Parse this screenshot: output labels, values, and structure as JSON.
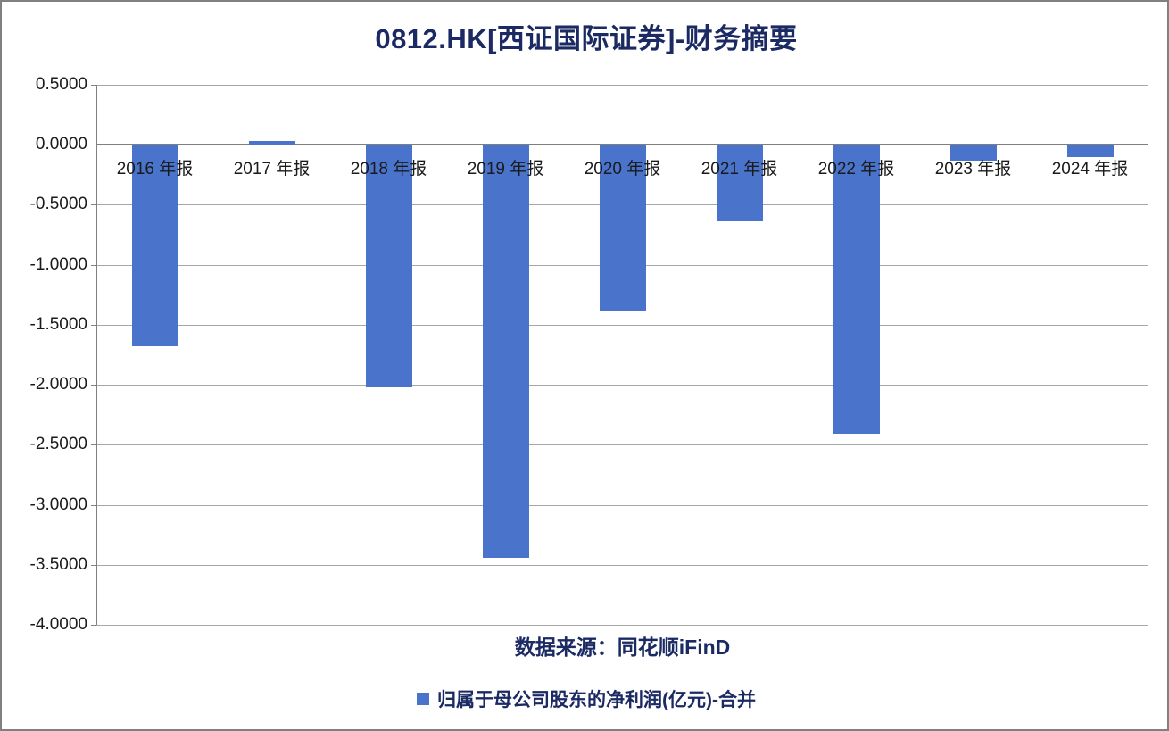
{
  "header": {
    "title": "0812.HK[西证国际证券]-财务摘要"
  },
  "footer": {
    "source": "数据来源：同花顺iFinD"
  },
  "legend": {
    "label": "归属于母公司股东的净利润(亿元)-合并",
    "marker_color": "#4A74CC"
  },
  "colors": {
    "bar": "#4A74CC",
    "grid": "#A6A6A6",
    "zero_line": "#7F7F7F",
    "axis": "#808080",
    "navy_text": "#1B2A63",
    "tick_text": "#1A1A1A"
  },
  "chart_data": {
    "type": "bar",
    "title": "0812.HK[西证国际证券]-财务摘要",
    "series_name": "归属于母公司股东的净利润(亿元)-合并",
    "categories": [
      "2016 年报",
      "2017 年报",
      "2018 年报",
      "2019 年报",
      "2020 年报",
      "2021 年报",
      "2022 年报",
      "2023 年报",
      "2024 年报"
    ],
    "values": [
      -1.68,
      0.03,
      -2.02,
      -3.44,
      -1.38,
      -0.64,
      -2.41,
      -0.13,
      -0.1
    ],
    "unit": "亿元",
    "xlabel": "",
    "ylabel": "",
    "ylim": [
      -4.0,
      0.5
    ],
    "y_tick_step": 0.5,
    "y_tick_labels": [
      "0.5000",
      "0.0000",
      "-0.5000",
      "-1.0000",
      "-1.5000",
      "-2.0000",
      "-2.5000",
      "-3.0000",
      "-3.5000",
      "-4.0000"
    ],
    "grid": true,
    "legend_position": "bottom",
    "source_note": "数据来源：同花顺iFinD"
  }
}
